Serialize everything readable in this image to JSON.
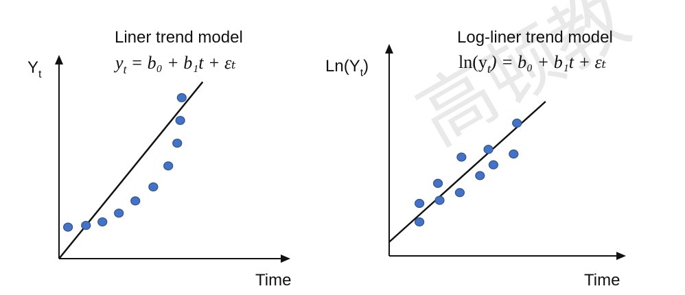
{
  "watermark": "高顿教",
  "chart_data": [
    {
      "type": "scatter",
      "title": "Liner trend model",
      "xlabel": "Time",
      "ylabel": {
        "base": "Y",
        "sub": "t"
      },
      "equation": {
        "lhs": "y",
        "lhs_sub": "t",
        "rhs": "= b₀ + b₁t + εₜ"
      },
      "xlim": [
        0,
        10
      ],
      "ylim": [
        0,
        10
      ],
      "points": [
        [
          0.6,
          1.8
        ],
        [
          1.8,
          1.9
        ],
        [
          2.9,
          2.1
        ],
        [
          4.0,
          2.6
        ],
        [
          5.1,
          3.3
        ],
        [
          6.3,
          4.1
        ],
        [
          7.3,
          5.3
        ],
        [
          7.9,
          6.6
        ],
        [
          8.1,
          7.9
        ],
        [
          8.2,
          9.2
        ]
      ],
      "trend": {
        "x": [
          0,
          9.6
        ],
        "y": [
          0,
          10.1
        ]
      }
    },
    {
      "type": "scatter",
      "title": "Log-liner trend model",
      "xlabel": "Time",
      "ylabel": {
        "base": "Ln(Y",
        "sub": "t",
        "tail": ")"
      },
      "equation": {
        "lhs": "ln(y",
        "lhs_sub": "t",
        "rhs": ") = b₀ + b₁t + εₜ"
      },
      "xlim": [
        0,
        10
      ],
      "ylim": [
        0,
        10
      ],
      "points": [
        [
          1.8,
          2.2
        ],
        [
          1.8,
          3.4
        ],
        [
          2.9,
          4.7
        ],
        [
          3.0,
          3.6
        ],
        [
          4.2,
          4.1
        ],
        [
          4.3,
          6.4
        ],
        [
          5.4,
          5.2
        ],
        [
          5.9,
          6.9
        ],
        [
          6.2,
          5.9
        ],
        [
          7.4,
          6.6
        ],
        [
          7.6,
          8.6
        ]
      ],
      "trend": {
        "x": [
          0,
          9.3
        ],
        "y": [
          0.9,
          10.0
        ]
      }
    }
  ]
}
